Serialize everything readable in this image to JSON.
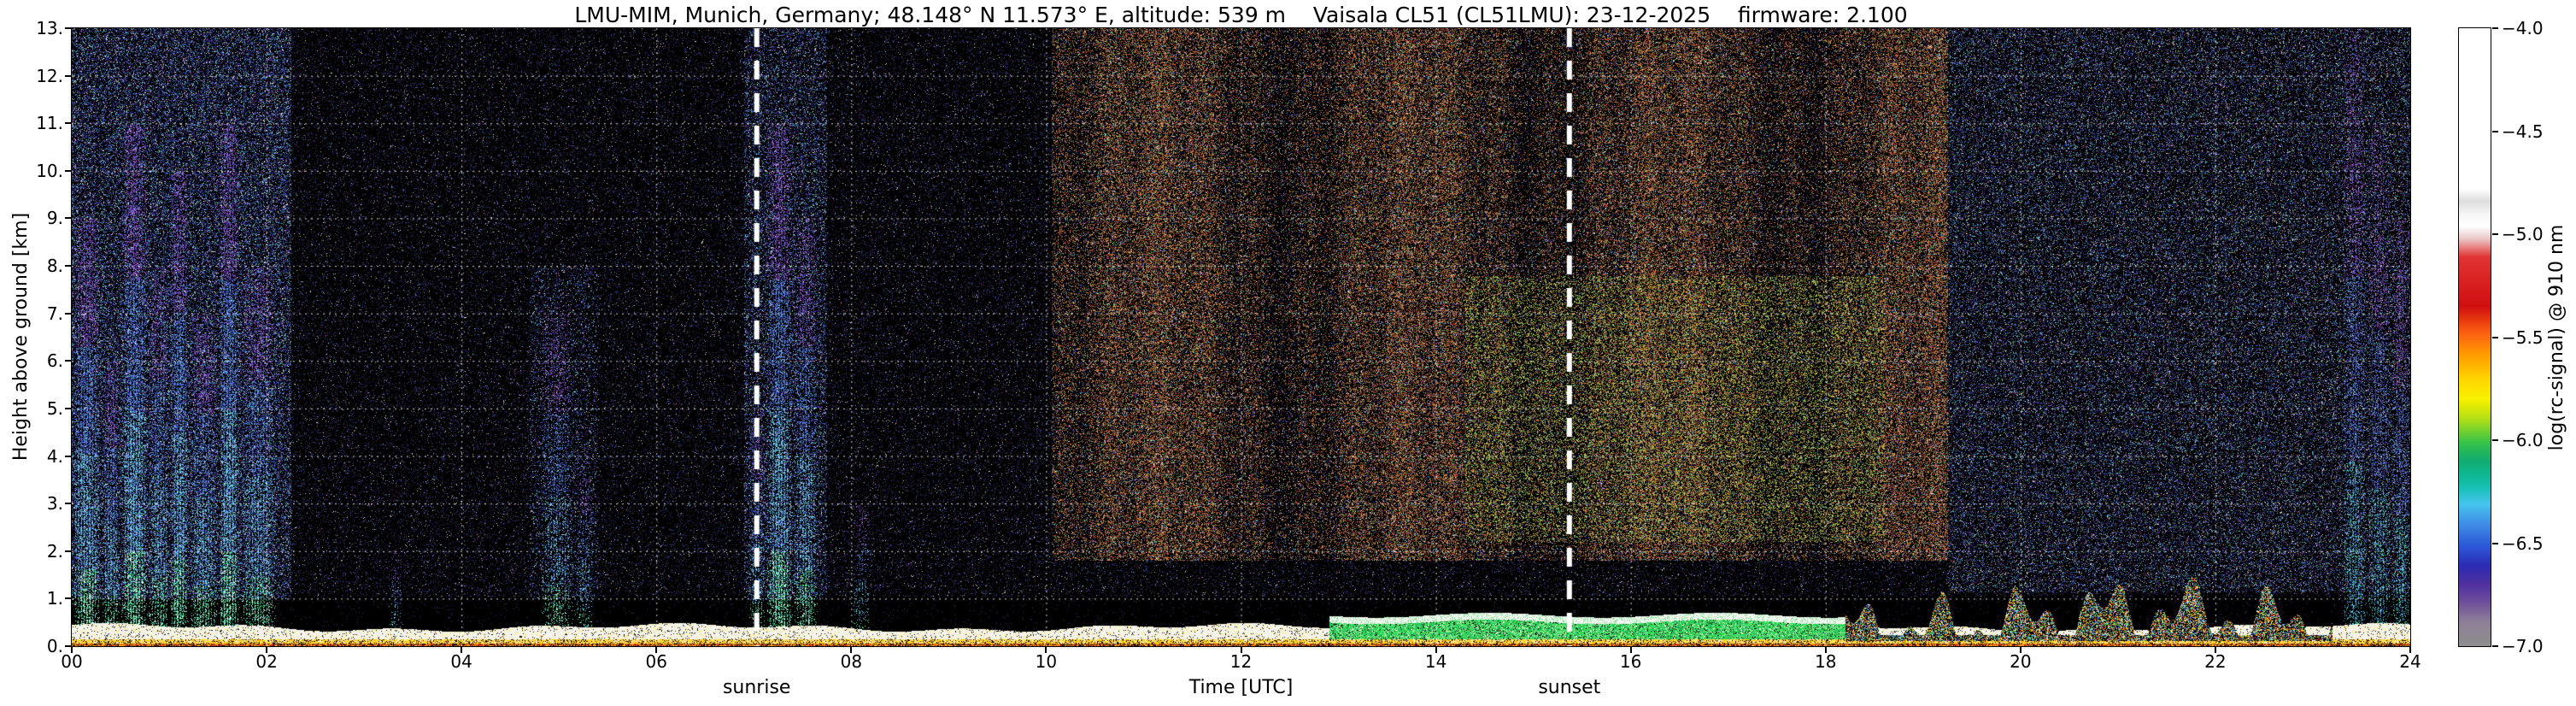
{
  "chart_data": {
    "type": "heatmap",
    "title": "LMU-MIM, Munich, Germany; 48.148° N 11.573° E, altitude: 539 m    Vaisala CL51 (CL51LMU): 23-12-2025    firmware: 2.100",
    "xlabel": "Time [UTC]",
    "ylabel": "Height above ground [km]",
    "xlim": [
      0,
      24
    ],
    "ylim": [
      0,
      13
    ],
    "x_ticks": [
      "00",
      "02",
      "04",
      "06",
      "08",
      "10",
      "12",
      "14",
      "16",
      "18",
      "20",
      "22",
      "24"
    ],
    "y_ticks": [
      "0.",
      "1.",
      "2.",
      "3.",
      "4.",
      "5.",
      "6.",
      "7.",
      "8.",
      "9.",
      "10.",
      "11.",
      "12.",
      "13."
    ],
    "grid": {
      "style": "dotted",
      "color": "#ffffff",
      "x_interval_hours": 2,
      "y_interval_km": 1
    },
    "background_color": "#000000",
    "colorbar": {
      "label": "log(rc-signal) @ 910 nm",
      "vmin": -7.0,
      "vmax": -4.0,
      "tick_labels": [
        "−4.0",
        "−4.5",
        "−5.0",
        "−5.5",
        "−6.0",
        "−6.5",
        "−7.0"
      ],
      "gradient_stops": [
        [
          "0%",
          "#ffffff"
        ],
        [
          "26%",
          "#ffffff"
        ],
        [
          "28%",
          "#dcdcdc"
        ],
        [
          "30%",
          "#f5f5f5"
        ],
        [
          "32%",
          "#ffffff"
        ],
        [
          "34%",
          "#eccaca"
        ],
        [
          "37%",
          "#e23434"
        ],
        [
          "45%",
          "#cf0f0f"
        ],
        [
          "49%",
          "#fb5a12"
        ],
        [
          "53%",
          "#ff9e00"
        ],
        [
          "57%",
          "#ffd700"
        ],
        [
          "60%",
          "#f8f000"
        ],
        [
          "63%",
          "#b8e012"
        ],
        [
          "67%",
          "#38c348"
        ],
        [
          "70%",
          "#0fac6f"
        ],
        [
          "74%",
          "#12bfae"
        ],
        [
          "77%",
          "#46c4ee"
        ],
        [
          "80%",
          "#4090e6"
        ],
        [
          "84%",
          "#2b55d5"
        ],
        [
          "87%",
          "#2b2bb2"
        ],
        [
          "90%",
          "#50309e"
        ],
        [
          "93%",
          "#6f4f9b"
        ],
        [
          "96%",
          "#8d7f97"
        ],
        [
          "100%",
          "#8e8e8e"
        ]
      ]
    },
    "annotations": [
      {
        "label": "sunrise",
        "time_utc": 7.03,
        "style": "thick-white-dashed-vline"
      },
      {
        "label": "sunset",
        "time_utc": 15.37,
        "style": "thick-white-dashed-vline"
      }
    ],
    "features": [
      {
        "kind": "clutter",
        "t": [
          18.2,
          23.2
        ],
        "h_max": 1.45,
        "description": "broken low clouds / precip clutter with mixed bright colors up to ~1.3 km"
      },
      {
        "kind": "green_band",
        "t": [
          12.9,
          18.2
        ],
        "h": [
          0.16,
          0.66
        ],
        "description": "green near-surface backscatter layer with thin white cap (afternoon)"
      },
      {
        "kind": "surface",
        "t": [
          0,
          24
        ],
        "h": [
          0,
          0.5
        ],
        "description": "strong continuous near-ground echo: white core over yellow/orange/red base"
      },
      {
        "kind": "plume",
        "t": [
          0.0,
          0.3
        ],
        "h_max": 9,
        "strength": 0.8
      },
      {
        "kind": "plume",
        "t": [
          0.3,
          0.5
        ],
        "h_max": 6,
        "strength": 0.6
      },
      {
        "kind": "plume",
        "t": [
          0.5,
          0.78
        ],
        "h_max": 11,
        "strength": 0.85
      },
      {
        "kind": "plume",
        "t": [
          0.78,
          1.0
        ],
        "h_max": 8,
        "strength": 0.6
      },
      {
        "kind": "plume",
        "t": [
          1.0,
          1.2
        ],
        "h_max": 10,
        "strength": 0.8
      },
      {
        "kind": "plume",
        "t": [
          1.2,
          1.5
        ],
        "h_max": 7,
        "strength": 0.6
      },
      {
        "kind": "plume",
        "t": [
          1.5,
          1.72
        ],
        "h_max": 11,
        "strength": 0.85
      },
      {
        "kind": "plume",
        "t": [
          1.72,
          2.1
        ],
        "h_max": 8,
        "strength": 0.6
      },
      {
        "kind": "plume",
        "t": [
          3.25,
          3.4
        ],
        "h_max": 2,
        "strength": 0.25
      },
      {
        "kind": "plume",
        "t": [
          4.8,
          5.15
        ],
        "h_max": 7,
        "strength": 0.45
      },
      {
        "kind": "plume",
        "t": [
          5.15,
          5.35
        ],
        "h_max": 4,
        "strength": 0.35
      },
      {
        "kind": "plume",
        "t": [
          6.95,
          7.12
        ],
        "h_max": 5,
        "strength": 0.5
      },
      {
        "kind": "plume",
        "t": [
          7.12,
          7.4
        ],
        "h_max": 11,
        "strength": 0.8
      },
      {
        "kind": "plume",
        "t": [
          7.4,
          7.65
        ],
        "h_max": 9,
        "strength": 0.6
      },
      {
        "kind": "plume",
        "t": [
          8.0,
          8.2
        ],
        "h_max": 3,
        "strength": 0.3
      },
      {
        "kind": "plume",
        "t": [
          23.3,
          23.55
        ],
        "h_max": 13,
        "strength": 0.5,
        "palette": "purple"
      },
      {
        "kind": "plume",
        "t": [
          23.55,
          23.8
        ],
        "h_max": 11,
        "strength": 0.45,
        "palette": "purple"
      },
      {
        "kind": "plume",
        "t": [
          23.8,
          24.0
        ],
        "h_max": 9,
        "strength": 0.5,
        "palette": "purple"
      },
      {
        "kind": "haze",
        "t": [
          0.0,
          2.25
        ],
        "h": [
          1,
          13
        ],
        "density": 0.3,
        "description": "dense blue/purple speckle aloft around midnight plumes"
      },
      {
        "kind": "haze",
        "t": [
          6.9,
          7.75
        ],
        "h": [
          1,
          13
        ],
        "density": 0.22
      },
      {
        "kind": "haze",
        "t": [
          4.7,
          5.4
        ],
        "h": [
          1,
          8
        ],
        "density": 0.12
      },
      {
        "kind": "patch",
        "t": [
          14.3,
          18.6
        ],
        "h": [
          2.2,
          7.8
        ],
        "density": 0.15,
        "palette": "olive",
        "description": "green-yellow enhanced signal patch in afternoon"
      },
      {
        "kind": "day_noise",
        "t": [
          10.05,
          19.25
        ],
        "h": [
          1.8,
          13
        ],
        "density": 0.38,
        "palette": "tan",
        "description": "daylight background noise (tan/brown speckle) filling free troposphere"
      },
      {
        "kind": "evening_noise",
        "t": [
          19.25,
          24
        ],
        "h": [
          1.15,
          13
        ],
        "density": 0.2
      },
      {
        "kind": "dark_band",
        "t": [
          0,
          24
        ],
        "h": [
          0,
          1.05
        ],
        "description": "dark (low-signal) band between surface layer and ~1 km"
      },
      {
        "kind": "night_noise",
        "t": [
          0,
          24
        ],
        "h": [
          1.05,
          13
        ],
        "density": 0.11,
        "description": "sparse dark purple/blue instrument noise at night"
      }
    ]
  }
}
